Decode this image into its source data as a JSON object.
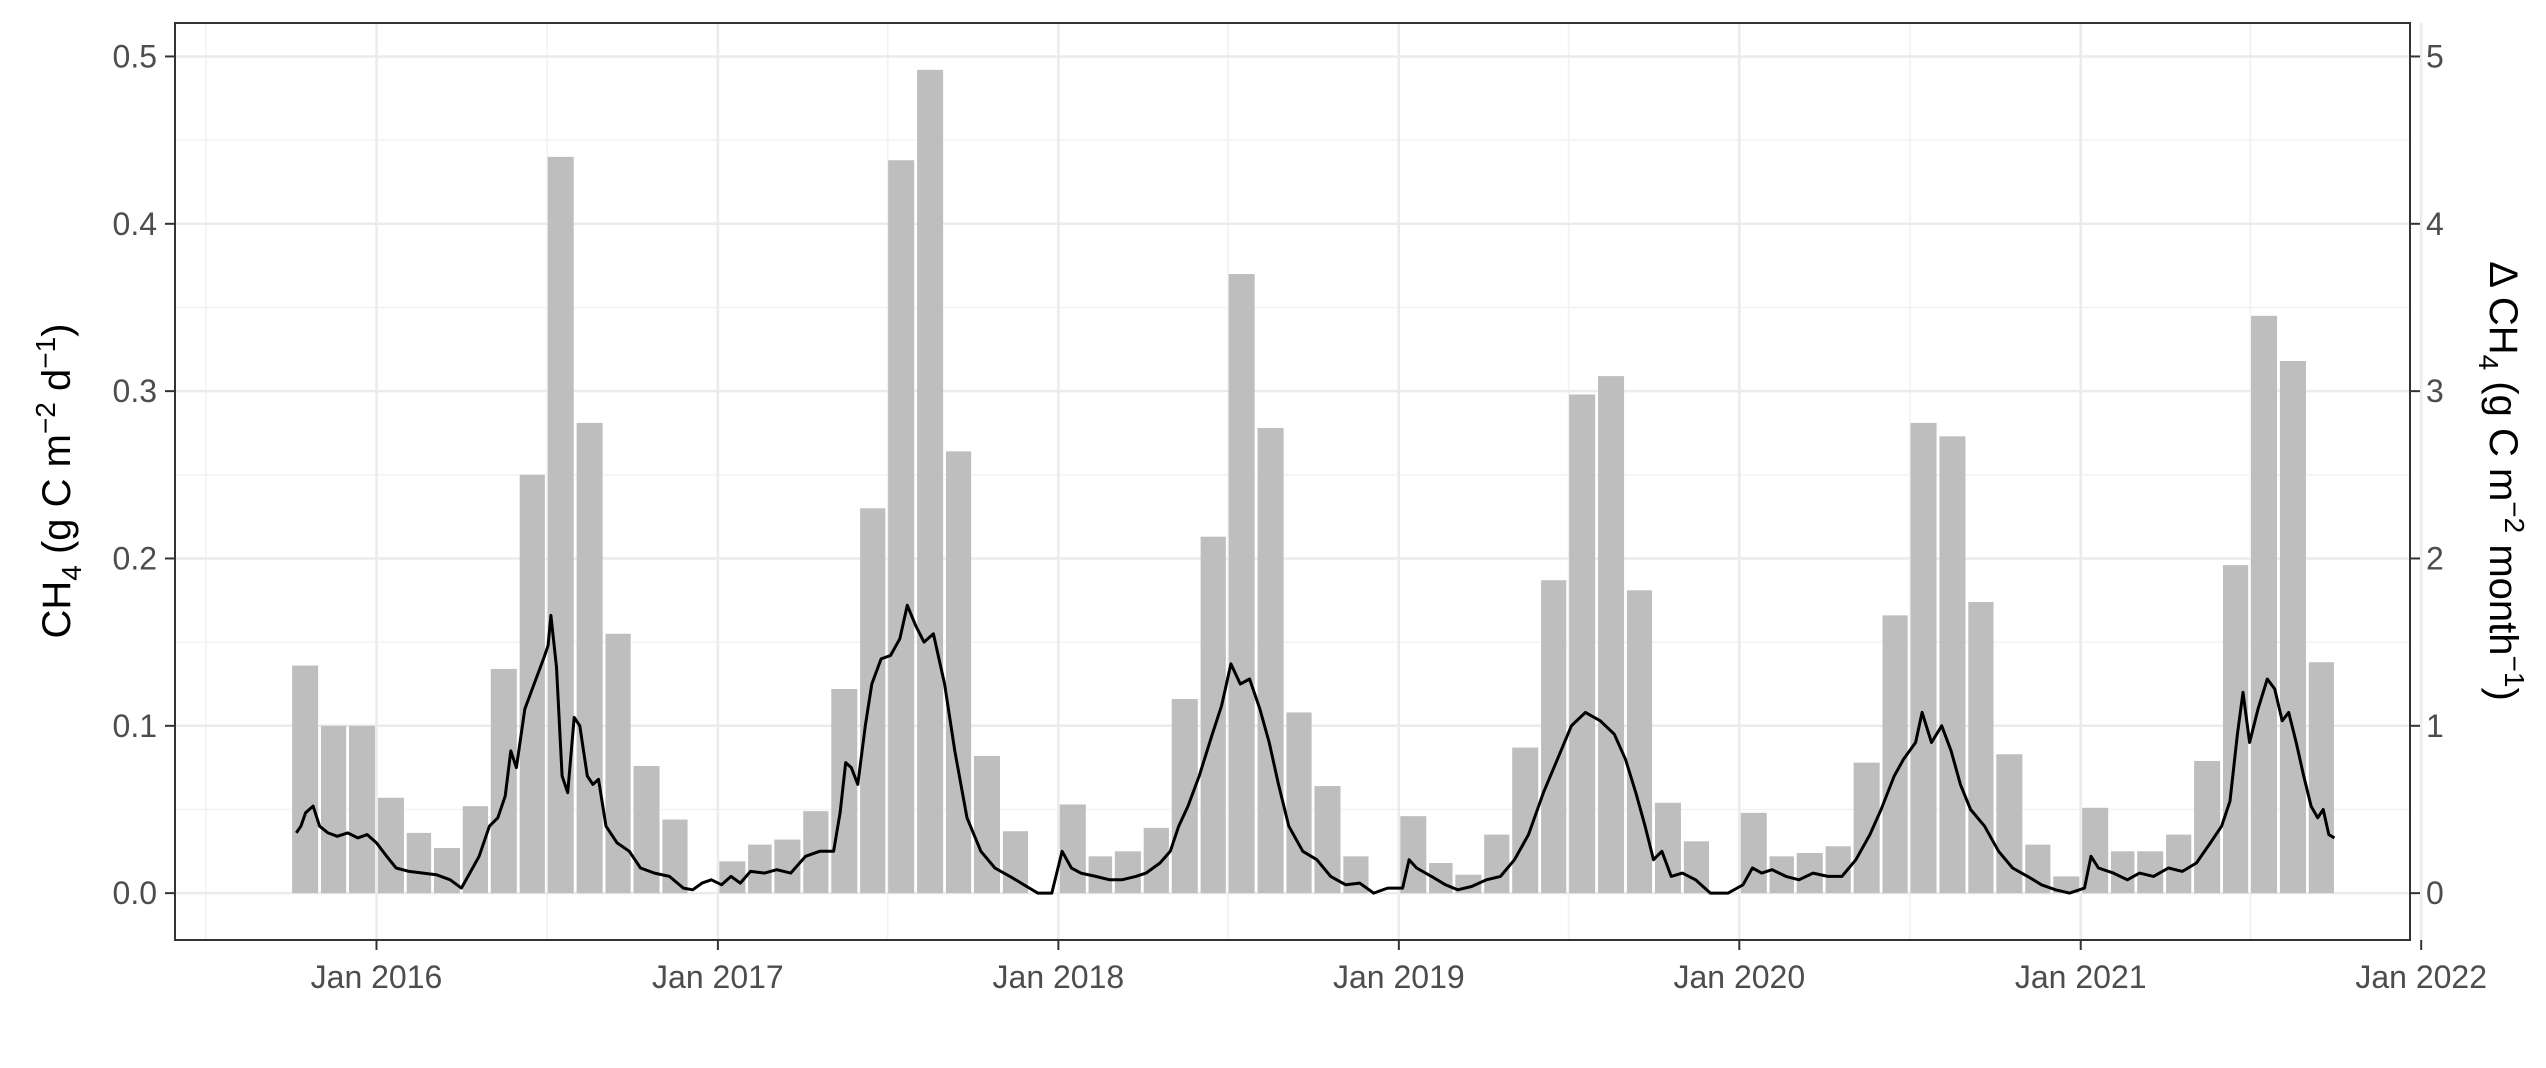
{
  "chart_data": {
    "type": "bar+line",
    "title": "",
    "xlabel": "",
    "x_ticks": [
      {
        "date": "2016-01-01",
        "label": "Jan 2016"
      },
      {
        "date": "2017-01-01",
        "label": "Jan 2017"
      },
      {
        "date": "2018-01-01",
        "label": "Jan 2018"
      },
      {
        "date": "2019-01-01",
        "label": "Jan 2019"
      },
      {
        "date": "2020-01-01",
        "label": "Jan 2020"
      },
      {
        "date": "2021-01-01",
        "label": "Jan 2021"
      },
      {
        "date": "2022-01-01",
        "label": "Jan 2022"
      }
    ],
    "xlim": [
      "2015-05-30",
      "2021-12-20"
    ],
    "y_left": {
      "label_main": "CH",
      "label_sub": "4",
      "label_unit_a": " (g C m",
      "label_sup_a": "−2",
      "label_unit_b": " d",
      "label_sup_b": "−1",
      "label_close": ")",
      "ylim": [
        -0.028,
        0.52
      ],
      "ticks": [
        0,
        0.1,
        0.2,
        0.3,
        0.4,
        0.5
      ],
      "tick_labels": [
        "0.0",
        "0.1",
        "0.2",
        "0.3",
        "0.4",
        "0.5"
      ]
    },
    "y_right": {
      "label_delta": "Δ CH",
      "label_sub": "4",
      "label_unit_a": " (g C m",
      "label_sup_a": "−2",
      "label_unit_b": " month",
      "label_sup_b": "−1",
      "label_close": ")",
      "ylim": [
        -0.28,
        5.2
      ],
      "ticks": [
        0,
        1,
        2,
        3,
        4,
        5
      ],
      "tick_labels": [
        "0",
        "1",
        "2",
        "3",
        "4",
        "5"
      ]
    },
    "bars": {
      "name": "Δ CH4 monthly (right axis)",
      "color": "#bebebe",
      "months": [
        "2015-10",
        "2015-11",
        "2015-12",
        "2016-01",
        "2016-02",
        "2016-03",
        "2016-04",
        "2016-05",
        "2016-06",
        "2016-07",
        "2016-08",
        "2016-09",
        "2016-10",
        "2016-11",
        "2016-12",
        "2017-01",
        "2017-02",
        "2017-03",
        "2017-04",
        "2017-05",
        "2017-06",
        "2017-07",
        "2017-08",
        "2017-09",
        "2017-10",
        "2017-11",
        "2017-12",
        "2018-01",
        "2018-02",
        "2018-03",
        "2018-04",
        "2018-05",
        "2018-06",
        "2018-07",
        "2018-08",
        "2018-09",
        "2018-10",
        "2018-11",
        "2018-12",
        "2019-01",
        "2019-02",
        "2019-03",
        "2019-04",
        "2019-05",
        "2019-06",
        "2019-07",
        "2019-08",
        "2019-09",
        "2019-10",
        "2019-11",
        "2019-12",
        "2020-01",
        "2020-02",
        "2020-03",
        "2020-04",
        "2020-05",
        "2020-06",
        "2020-07",
        "2020-08",
        "2020-09",
        "2020-10",
        "2020-11",
        "2020-12",
        "2021-01",
        "2021-02",
        "2021-03",
        "2021-04",
        "2021-05",
        "2021-06",
        "2021-07",
        "2021-08",
        "2021-09"
      ],
      "values": [
        1.36,
        1.0,
        1.0,
        0.57,
        0.36,
        0.27,
        0.52,
        1.34,
        2.5,
        4.4,
        2.81,
        1.55,
        0.76,
        0.44,
        0.0,
        0.19,
        0.29,
        0.32,
        0.49,
        1.22,
        2.3,
        4.38,
        4.92,
        2.64,
        0.82,
        0.37,
        0.0,
        0.53,
        0.22,
        0.25,
        0.39,
        1.16,
        2.13,
        3.7,
        2.78,
        1.08,
        0.64,
        0.22,
        0.0,
        0.46,
        0.18,
        0.11,
        0.35,
        0.87,
        1.87,
        2.98,
        3.09,
        1.81,
        0.54,
        0.31,
        0.0,
        0.48,
        0.22,
        0.24,
        0.28,
        0.78,
        1.66,
        2.81,
        2.73,
        1.74,
        0.83,
        0.29,
        0.1,
        0.51,
        0.25,
        0.25,
        0.35,
        0.79,
        1.96,
        3.45,
        3.18,
        1.38
      ]
    },
    "line": {
      "name": "CH4 daily flux, smoothed (left axis)",
      "color": "#000000",
      "points": [
        [
          "2015-10-07",
          0.036
        ],
        [
          "2015-10-12",
          0.04
        ],
        [
          "2015-10-17",
          0.048
        ],
        [
          "2015-10-25",
          0.052
        ],
        [
          "2015-11-01",
          0.04
        ],
        [
          "2015-11-10",
          0.036
        ],
        [
          "2015-11-20",
          0.034
        ],
        [
          "2015-12-01",
          0.036
        ],
        [
          "2015-12-12",
          0.033
        ],
        [
          "2015-12-22",
          0.035
        ],
        [
          "2016-01-01",
          0.03
        ],
        [
          "2016-01-12",
          0.022
        ],
        [
          "2016-01-22",
          0.015
        ],
        [
          "2016-02-05",
          0.013
        ],
        [
          "2016-02-20",
          0.012
        ],
        [
          "2016-03-05",
          0.011
        ],
        [
          "2016-03-20",
          0.008
        ],
        [
          "2016-04-01",
          0.003
        ],
        [
          "2016-04-10",
          0.012
        ],
        [
          "2016-04-20",
          0.022
        ],
        [
          "2016-05-01",
          0.04
        ],
        [
          "2016-05-10",
          0.045
        ],
        [
          "2016-05-18",
          0.058
        ],
        [
          "2016-05-24",
          0.085
        ],
        [
          "2016-05-30",
          0.075
        ],
        [
          "2016-06-08",
          0.11
        ],
        [
          "2016-06-18",
          0.125
        ],
        [
          "2016-06-28",
          0.14
        ],
        [
          "2016-07-03",
          0.148
        ],
        [
          "2016-07-06",
          0.166
        ],
        [
          "2016-07-12",
          0.135
        ],
        [
          "2016-07-18",
          0.07
        ],
        [
          "2016-07-24",
          0.06
        ],
        [
          "2016-07-31",
          0.105
        ],
        [
          "2016-08-06",
          0.1
        ],
        [
          "2016-08-14",
          0.07
        ],
        [
          "2016-08-20",
          0.065
        ],
        [
          "2016-08-26",
          0.068
        ],
        [
          "2016-09-03",
          0.04
        ],
        [
          "2016-09-15",
          0.03
        ],
        [
          "2016-09-28",
          0.025
        ],
        [
          "2016-10-10",
          0.015
        ],
        [
          "2016-10-25",
          0.012
        ],
        [
          "2016-11-10",
          0.01
        ],
        [
          "2016-11-25",
          0.003
        ],
        [
          "2016-12-05",
          0.002
        ],
        [
          "2016-12-15",
          0.006
        ],
        [
          "2016-12-25",
          0.008
        ],
        [
          "2017-01-05",
          0.005
        ],
        [
          "2017-01-15",
          0.01
        ],
        [
          "2017-01-25",
          0.006
        ],
        [
          "2017-02-05",
          0.013
        ],
        [
          "2017-02-20",
          0.012
        ],
        [
          "2017-03-05",
          0.014
        ],
        [
          "2017-03-20",
          0.012
        ],
        [
          "2017-04-05",
          0.022
        ],
        [
          "2017-04-20",
          0.025
        ],
        [
          "2017-05-05",
          0.025
        ],
        [
          "2017-05-12",
          0.048
        ],
        [
          "2017-05-18",
          0.078
        ],
        [
          "2017-05-24",
          0.075
        ],
        [
          "2017-05-31",
          0.065
        ],
        [
          "2017-06-08",
          0.1
        ],
        [
          "2017-06-15",
          0.125
        ],
        [
          "2017-06-25",
          0.14
        ],
        [
          "2017-07-05",
          0.142
        ],
        [
          "2017-07-15",
          0.152
        ],
        [
          "2017-07-23",
          0.172
        ],
        [
          "2017-08-01",
          0.16
        ],
        [
          "2017-08-10",
          0.15
        ],
        [
          "2017-08-20",
          0.155
        ],
        [
          "2017-09-01",
          0.125
        ],
        [
          "2017-09-12",
          0.085
        ],
        [
          "2017-09-25",
          0.045
        ],
        [
          "2017-10-10",
          0.025
        ],
        [
          "2017-10-25",
          0.015
        ],
        [
          "2017-11-10",
          0.01
        ],
        [
          "2017-11-25",
          0.005
        ],
        [
          "2017-12-10",
          0.0
        ],
        [
          "2017-12-25",
          0.0
        ],
        [
          "2018-01-05",
          0.025
        ],
        [
          "2018-01-15",
          0.015
        ],
        [
          "2018-01-25",
          0.012
        ],
        [
          "2018-02-10",
          0.01
        ],
        [
          "2018-02-25",
          0.008
        ],
        [
          "2018-03-10",
          0.008
        ],
        [
          "2018-03-25",
          0.01
        ],
        [
          "2018-04-05",
          0.012
        ],
        [
          "2018-04-20",
          0.018
        ],
        [
          "2018-05-01",
          0.025
        ],
        [
          "2018-05-10",
          0.04
        ],
        [
          "2018-05-20",
          0.052
        ],
        [
          "2018-06-01",
          0.07
        ],
        [
          "2018-06-15",
          0.095
        ],
        [
          "2018-06-25",
          0.112
        ],
        [
          "2018-07-05",
          0.137
        ],
        [
          "2018-07-15",
          0.125
        ],
        [
          "2018-07-25",
          0.128
        ],
        [
          "2018-08-05",
          0.11
        ],
        [
          "2018-08-15",
          0.09
        ],
        [
          "2018-08-25",
          0.065
        ],
        [
          "2018-09-05",
          0.04
        ],
        [
          "2018-09-20",
          0.025
        ],
        [
          "2018-10-05",
          0.02
        ],
        [
          "2018-10-20",
          0.01
        ],
        [
          "2018-11-05",
          0.005
        ],
        [
          "2018-11-20",
          0.006
        ],
        [
          "2018-12-05",
          0.0
        ],
        [
          "2018-12-20",
          0.003
        ],
        [
          "2019-01-05",
          0.003
        ],
        [
          "2019-01-12",
          0.02
        ],
        [
          "2019-01-20",
          0.015
        ],
        [
          "2019-02-05",
          0.01
        ],
        [
          "2019-02-20",
          0.005
        ],
        [
          "2019-03-05",
          0.002
        ],
        [
          "2019-03-20",
          0.004
        ],
        [
          "2019-04-05",
          0.008
        ],
        [
          "2019-04-20",
          0.01
        ],
        [
          "2019-05-05",
          0.02
        ],
        [
          "2019-05-20",
          0.035
        ],
        [
          "2019-06-05",
          0.06
        ],
        [
          "2019-06-20",
          0.08
        ],
        [
          "2019-07-05",
          0.1
        ],
        [
          "2019-07-20",
          0.108
        ],
        [
          "2019-08-05",
          0.103
        ],
        [
          "2019-08-20",
          0.095
        ],
        [
          "2019-09-01",
          0.08
        ],
        [
          "2019-09-12",
          0.06
        ],
        [
          "2019-09-22",
          0.04
        ],
        [
          "2019-10-01",
          0.02
        ],
        [
          "2019-10-10",
          0.025
        ],
        [
          "2019-10-20",
          0.01
        ],
        [
          "2019-11-01",
          0.012
        ],
        [
          "2019-11-15",
          0.008
        ],
        [
          "2019-12-01",
          0.0
        ],
        [
          "2019-12-20",
          0.0
        ],
        [
          "2020-01-05",
          0.005
        ],
        [
          "2020-01-15",
          0.015
        ],
        [
          "2020-01-25",
          0.012
        ],
        [
          "2020-02-05",
          0.014
        ],
        [
          "2020-02-20",
          0.01
        ],
        [
          "2020-03-05",
          0.008
        ],
        [
          "2020-03-20",
          0.012
        ],
        [
          "2020-04-05",
          0.01
        ],
        [
          "2020-04-20",
          0.01
        ],
        [
          "2020-05-05",
          0.02
        ],
        [
          "2020-05-20",
          0.035
        ],
        [
          "2020-06-01",
          0.05
        ],
        [
          "2020-06-15",
          0.07
        ],
        [
          "2020-06-25",
          0.08
        ],
        [
          "2020-07-08",
          0.09
        ],
        [
          "2020-07-15",
          0.108
        ],
        [
          "2020-07-25",
          0.09
        ],
        [
          "2020-08-05",
          0.1
        ],
        [
          "2020-08-15",
          0.085
        ],
        [
          "2020-08-25",
          0.065
        ],
        [
          "2020-09-05",
          0.05
        ],
        [
          "2020-09-20",
          0.04
        ],
        [
          "2020-10-05",
          0.025
        ],
        [
          "2020-10-20",
          0.015
        ],
        [
          "2020-11-05",
          0.01
        ],
        [
          "2020-11-20",
          0.005
        ],
        [
          "2020-12-05",
          0.002
        ],
        [
          "2020-12-20",
          0.0
        ],
        [
          "2021-01-05",
          0.003
        ],
        [
          "2021-01-12",
          0.022
        ],
        [
          "2021-01-20",
          0.015
        ],
        [
          "2021-02-05",
          0.012
        ],
        [
          "2021-02-20",
          0.008
        ],
        [
          "2021-03-05",
          0.012
        ],
        [
          "2021-03-20",
          0.01
        ],
        [
          "2021-04-05",
          0.015
        ],
        [
          "2021-04-20",
          0.013
        ],
        [
          "2021-05-05",
          0.018
        ],
        [
          "2021-05-20",
          0.03
        ],
        [
          "2021-06-01",
          0.04
        ],
        [
          "2021-06-10",
          0.055
        ],
        [
          "2021-06-18",
          0.095
        ],
        [
          "2021-06-24",
          0.12
        ],
        [
          "2021-07-01",
          0.09
        ],
        [
          "2021-07-10",
          0.11
        ],
        [
          "2021-07-20",
          0.128
        ],
        [
          "2021-07-28",
          0.122
        ],
        [
          "2021-08-05",
          0.103
        ],
        [
          "2021-08-12",
          0.108
        ],
        [
          "2021-08-20",
          0.09
        ],
        [
          "2021-08-28",
          0.07
        ],
        [
          "2021-09-05",
          0.052
        ],
        [
          "2021-09-12",
          0.045
        ],
        [
          "2021-09-18",
          0.05
        ],
        [
          "2021-09-24",
          0.035
        ],
        [
          "2021-09-30",
          0.033
        ]
      ]
    }
  }
}
